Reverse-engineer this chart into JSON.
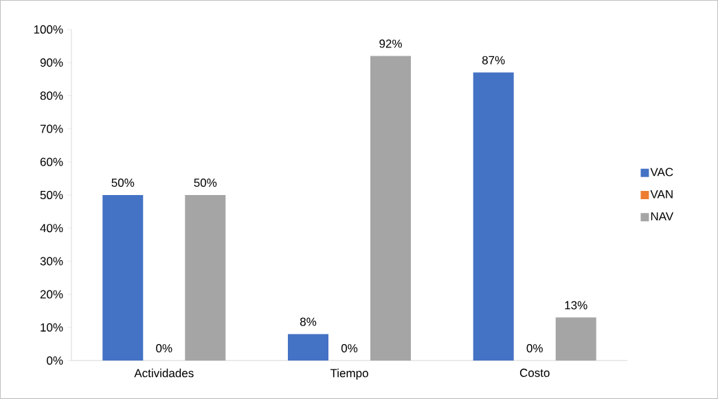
{
  "chart_data": {
    "type": "bar",
    "categories": [
      "Actividades",
      "Tiempo",
      "Costo"
    ],
    "series": [
      {
        "name": "VAC",
        "color": "#4472c4",
        "values": [
          50,
          8,
          87
        ],
        "value_labels": [
          "50%",
          "8%",
          "87%"
        ]
      },
      {
        "name": "VAN",
        "color": "#ed7d31",
        "values": [
          0,
          0,
          0
        ],
        "value_labels": [
          "0%",
          "0%",
          "0%"
        ]
      },
      {
        "name": "NAV",
        "color": "#a5a5a5",
        "values": [
          50,
          92,
          13
        ],
        "value_labels": [
          "50%",
          "92%",
          "13%"
        ]
      }
    ],
    "ylim": [
      0,
      100
    ],
    "yticks": [
      {
        "value": 0,
        "label": "0%"
      },
      {
        "value": 10,
        "label": "10%"
      },
      {
        "value": 20,
        "label": "20%"
      },
      {
        "value": 30,
        "label": "30%"
      },
      {
        "value": 40,
        "label": "40%"
      },
      {
        "value": 50,
        "label": "50%"
      },
      {
        "value": 60,
        "label": "60%"
      },
      {
        "value": 70,
        "label": "70%"
      },
      {
        "value": 80,
        "label": "80%"
      },
      {
        "value": 90,
        "label": "90%"
      },
      {
        "value": 100,
        "label": "100%"
      }
    ],
    "legend": "right"
  }
}
